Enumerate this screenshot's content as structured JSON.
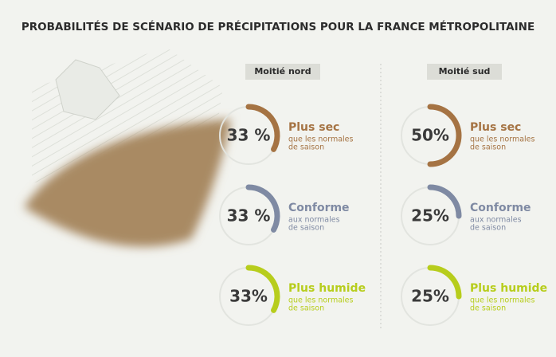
{
  "title": "PROBABILITÉS DE SCÉNARIO DE PRÉCIPITATIONS POUR LA FRANCE MÉTROPOLITAINE",
  "chart_data": [
    {
      "type": "gauge",
      "title": "Moitié nord",
      "categories": [
        "Plus sec",
        "Conforme",
        "Plus humide"
      ],
      "descriptions": [
        [
          "que les normales",
          "de saison"
        ],
        [
          "aux normales",
          "de saison"
        ],
        [
          "que les normales",
          "de saison"
        ]
      ],
      "values": [
        33,
        33,
        33
      ],
      "value_labels": [
        "33 %",
        "33 %",
        "33%"
      ],
      "colors": [
        "#a57343",
        "#7f8aa3",
        "#b7cd1c"
      ],
      "ylim": [
        0,
        100
      ]
    },
    {
      "type": "gauge",
      "title": "Moitié sud",
      "categories": [
        "Plus sec",
        "Conforme",
        "Plus humide"
      ],
      "descriptions": [
        [
          "que les normales",
          "de saison"
        ],
        [
          "aux normales",
          "de saison"
        ],
        [
          "que les normales",
          "de saison"
        ]
      ],
      "values": [
        50,
        25,
        25
      ],
      "value_labels": [
        "50%",
        "25%",
        "25%"
      ],
      "colors": [
        "#a57343",
        "#7f8aa3",
        "#b7cd1c"
      ],
      "ylim": [
        0,
        100
      ]
    }
  ]
}
